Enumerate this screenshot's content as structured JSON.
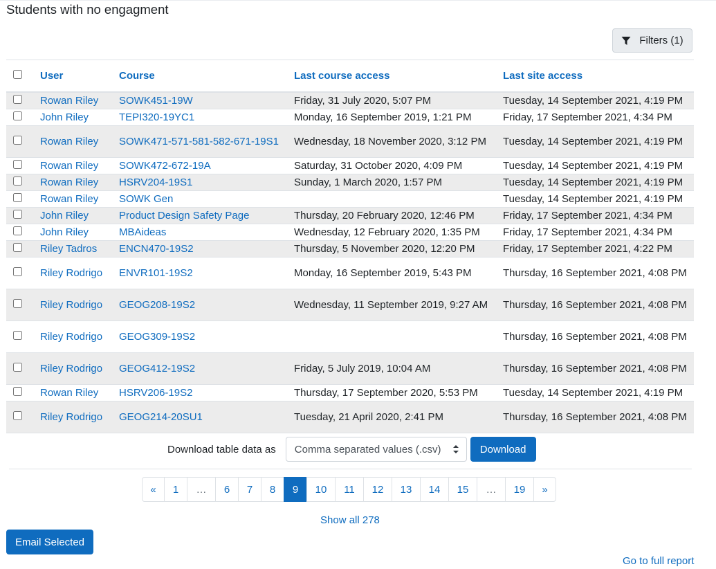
{
  "title": "Students with no engagment",
  "filters_label": "Filters (1)",
  "columns": [
    "User",
    "Course",
    "Last course access",
    "Last site access"
  ],
  "rows": [
    {
      "user": "Rowan Riley",
      "course": "SOWK451-19W",
      "course_access": "Friday, 31 July 2020, 5:07 PM",
      "site_access": "Tuesday, 14 September 2021, 4:19 PM"
    },
    {
      "user": "John Riley",
      "course": "TEPI320-19YC1",
      "course_access": "Monday, 16 September 2019, 1:21 PM",
      "site_access": "Friday, 17 September 2021, 4:34 PM"
    },
    {
      "user": "Rowan Riley",
      "course": "SOWK471-571-581-582-671-19S1",
      "course_access": "Wednesday, 18 November 2020, 3:12 PM",
      "site_access": "Tuesday, 14 September 2021, 4:19 PM"
    },
    {
      "user": "Rowan Riley",
      "course": "SOWK472-672-19A",
      "course_access": "Saturday, 31 October 2020, 4:09 PM",
      "site_access": "Tuesday, 14 September 2021, 4:19 PM"
    },
    {
      "user": "Rowan Riley",
      "course": "HSRV204-19S1",
      "course_access": "Sunday, 1 March 2020, 1:57 PM",
      "site_access": "Tuesday, 14 September 2021, 4:19 PM"
    },
    {
      "user": "Rowan Riley",
      "course": "SOWK Gen",
      "course_access": "",
      "site_access": "Tuesday, 14 September 2021, 4:19 PM"
    },
    {
      "user": "John Riley",
      "course": "Product Design Safety Page",
      "course_access": "Thursday, 20 February 2020, 12:46 PM",
      "site_access": "Friday, 17 September 2021, 4:34 PM"
    },
    {
      "user": "John Riley",
      "course": "MBAideas",
      "course_access": "Wednesday, 12 February 2020, 1:35 PM",
      "site_access": "Friday, 17 September 2021, 4:34 PM"
    },
    {
      "user": "Riley Tadros",
      "course": "ENCN470-19S2",
      "course_access": "Thursday, 5 November 2020, 12:20 PM",
      "site_access": "Friday, 17 September 2021, 4:22 PM"
    },
    {
      "user": "Riley Rodrigo",
      "course": "ENVR101-19S2",
      "course_access": "Monday, 16 September 2019, 5:43 PM",
      "site_access": "Thursday, 16 September 2021, 4:08 PM"
    },
    {
      "user": "Riley Rodrigo",
      "course": "GEOG208-19S2",
      "course_access": "Wednesday, 11 September 2019, 9:27 AM",
      "site_access": "Thursday, 16 September 2021, 4:08 PM"
    },
    {
      "user": "Riley Rodrigo",
      "course": "GEOG309-19S2",
      "course_access": "",
      "site_access": "Thursday, 16 September 2021, 4:08 PM"
    },
    {
      "user": "Riley Rodrigo",
      "course": "GEOG412-19S2",
      "course_access": "Friday, 5 July 2019, 10:04 AM",
      "site_access": "Thursday, 16 September 2021, 4:08 PM"
    },
    {
      "user": "Rowan Riley",
      "course": "HSRV206-19S2",
      "course_access": "Thursday, 17 September 2020, 5:53 PM",
      "site_access": "Tuesday, 14 September 2021, 4:19 PM"
    },
    {
      "user": "Riley Rodrigo",
      "course": "GEOG214-20SU1",
      "course_access": "Tuesday, 21 April 2020, 2:41 PM",
      "site_access": "Thursday, 16 September 2021, 4:08 PM"
    }
  ],
  "download": {
    "label": "Download table data as",
    "format": "Comma separated values (.csv)",
    "button": "Download"
  },
  "pagination": {
    "pages": [
      "«",
      "1",
      "…",
      "6",
      "7",
      "8",
      "9",
      "10",
      "11",
      "12",
      "13",
      "14",
      "15",
      "…",
      "19",
      "»"
    ],
    "active": "9"
  },
  "show_all": "Show all 278",
  "email_button": "Email Selected",
  "full_report": "Go to full report",
  "colors": {
    "link": "#0f6cbf",
    "stripe": "#ececec"
  }
}
